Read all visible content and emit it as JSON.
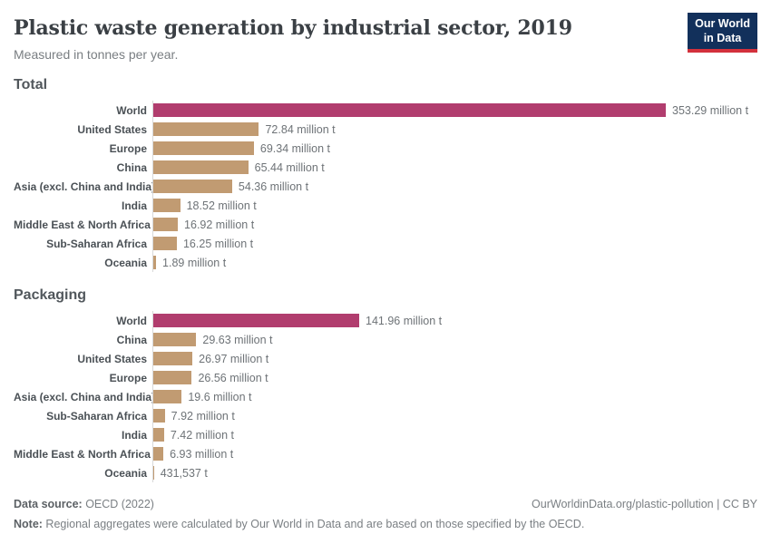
{
  "header": {
    "title": "Plastic waste generation by industrial sector, 2019",
    "subtitle": "Measured in tonnes per year.",
    "logo_line1": "Our World",
    "logo_line2": "in Data"
  },
  "colors": {
    "world_bar": "#b13d6e",
    "region_bar": "#c19b72",
    "axis_line": "#d9d9d9",
    "logo_navy": "#12305b",
    "logo_red": "#d3313c"
  },
  "chart_data": [
    {
      "type": "bar",
      "title": "Total",
      "orientation": "horizontal",
      "unit": "tonnes per year (millions)",
      "xlim": [
        0,
        353.29
      ],
      "grid": false,
      "legend": "none",
      "bars": [
        {
          "label": "World",
          "value": 353.29,
          "value_label": "353.29 million t",
          "highlight": true
        },
        {
          "label": "United States",
          "value": 72.84,
          "value_label": "72.84 million t",
          "highlight": false
        },
        {
          "label": "Europe",
          "value": 69.34,
          "value_label": "69.34 million t",
          "highlight": false
        },
        {
          "label": "China",
          "value": 65.44,
          "value_label": "65.44 million t",
          "highlight": false
        },
        {
          "label": "Asia (excl. China and India)",
          "value": 54.36,
          "value_label": "54.36 million t",
          "highlight": false
        },
        {
          "label": "India",
          "value": 18.52,
          "value_label": "18.52 million t",
          "highlight": false
        },
        {
          "label": "Middle East & North Africa",
          "value": 16.92,
          "value_label": "16.92 million t",
          "highlight": false
        },
        {
          "label": "Sub-Saharan Africa",
          "value": 16.25,
          "value_label": "16.25 million t",
          "highlight": false
        },
        {
          "label": "Oceania",
          "value": 1.89,
          "value_label": "1.89 million t",
          "highlight": false
        }
      ]
    },
    {
      "type": "bar",
      "title": "Packaging",
      "orientation": "horizontal",
      "unit": "tonnes per year (millions)",
      "xlim": [
        0,
        353.29
      ],
      "grid": false,
      "legend": "none",
      "bars": [
        {
          "label": "World",
          "value": 141.96,
          "value_label": "141.96 million t",
          "highlight": true
        },
        {
          "label": "China",
          "value": 29.63,
          "value_label": "29.63 million t",
          "highlight": false
        },
        {
          "label": "United States",
          "value": 26.97,
          "value_label": "26.97 million t",
          "highlight": false
        },
        {
          "label": "Europe",
          "value": 26.56,
          "value_label": "26.56 million t",
          "highlight": false
        },
        {
          "label": "Asia (excl. China and India)",
          "value": 19.6,
          "value_label": "19.6 million t",
          "highlight": false
        },
        {
          "label": "Sub-Saharan Africa",
          "value": 7.92,
          "value_label": "7.92 million t",
          "highlight": false
        },
        {
          "label": "India",
          "value": 7.42,
          "value_label": "7.42 million t",
          "highlight": false
        },
        {
          "label": "Middle East & North Africa",
          "value": 6.93,
          "value_label": "6.93 million t",
          "highlight": false
        },
        {
          "label": "Oceania",
          "value": 0.431537,
          "value_label": "431,537 t",
          "highlight": false
        }
      ]
    }
  ],
  "footer": {
    "source_label": "Data source:",
    "source_value": " OECD (2022)",
    "credit": "OurWorldinData.org/plastic-pollution | CC BY",
    "note_label": "Note:",
    "note_value": " Regional aggregates were calculated by Our World in Data and are based on those specified by the OECD."
  }
}
